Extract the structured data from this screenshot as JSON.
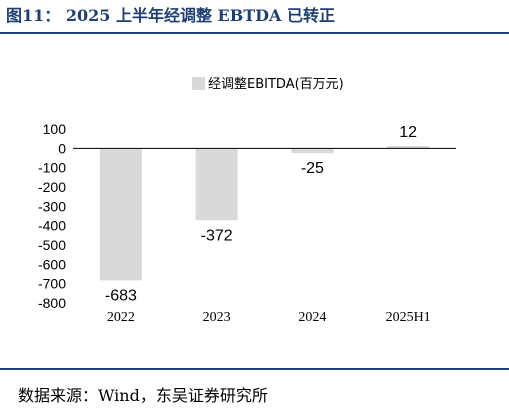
{
  "header": {
    "title": "图11：  2025 上半年经调整 EBTDA 已转正"
  },
  "footer": {
    "source": "数据来源：Wind，东吴证券研究所"
  },
  "colors": {
    "accent": "#1f3f73",
    "bar": "#d9d9d9"
  },
  "chart_data": {
    "type": "bar",
    "title": "",
    "xlabel": "",
    "ylabel": "",
    "categories": [
      "2022",
      "2023",
      "2024",
      "2025H1"
    ],
    "series": [
      {
        "name": "经调整EBITDA(百万元)",
        "values": [
          -683,
          -372,
          -25,
          12
        ]
      }
    ],
    "data_labels": [
      "-683",
      "-372",
      "-25",
      "12"
    ],
    "ylim": [
      -800,
      100
    ],
    "yticks": [
      100,
      0,
      -100,
      -200,
      -300,
      -400,
      -500,
      -600,
      -700,
      -800
    ],
    "grid": false,
    "legend": "top-center"
  }
}
